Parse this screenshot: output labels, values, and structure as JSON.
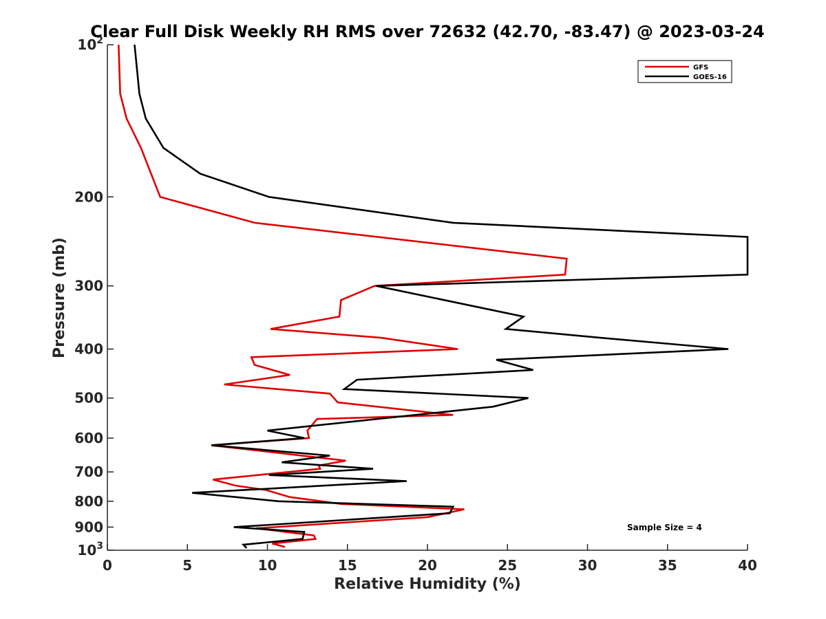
{
  "chart_data": {
    "type": "line",
    "title": "Clear Full Disk Weekly RH RMS over 72632 (42.70, -83.47) @ 2023-03-24",
    "xlabel": "Relative Humidity (%)",
    "ylabel": "Pressure (mb)",
    "xlim": [
      0,
      40
    ],
    "ylim": [
      100,
      1000
    ],
    "yscale": "log",
    "y_reversed": true,
    "x_ticks": [
      "0",
      "5",
      "10",
      "15",
      "20",
      "25",
      "30",
      "35",
      "40"
    ],
    "y_ticks": [
      {
        "value": 100,
        "label": "10",
        "sup": "2"
      },
      {
        "value": 200,
        "label": "200",
        "sup": ""
      },
      {
        "value": 300,
        "label": "300",
        "sup": ""
      },
      {
        "value": 400,
        "label": "400",
        "sup": ""
      },
      {
        "value": 500,
        "label": "500",
        "sup": ""
      },
      {
        "value": 600,
        "label": "600",
        "sup": ""
      },
      {
        "value": 700,
        "label": "700",
        "sup": ""
      },
      {
        "value": 800,
        "label": "800",
        "sup": ""
      },
      {
        "value": 900,
        "label": "900",
        "sup": ""
      },
      {
        "value": 1000,
        "label": "10",
        "sup": "3"
      }
    ],
    "grid": false,
    "legend_position": "top-right",
    "series": [
      {
        "name": "GFS",
        "color": "#e00000",
        "points": [
          [
            0.7,
            100
          ],
          [
            0.8,
            125
          ],
          [
            1.2,
            140
          ],
          [
            2.1,
            160
          ],
          [
            3.3,
            200
          ],
          [
            9.2,
            225
          ],
          [
            28.7,
            265
          ],
          [
            28.6,
            285
          ],
          [
            16.7,
            300
          ],
          [
            14.6,
            320
          ],
          [
            14.5,
            345
          ],
          [
            10.2,
            365
          ],
          [
            17.1,
            380
          ],
          [
            21.9,
            400
          ],
          [
            9.0,
            415
          ],
          [
            9.2,
            430
          ],
          [
            11.4,
            450
          ],
          [
            7.3,
            470
          ],
          [
            13.9,
            490
          ],
          [
            14.4,
            510
          ],
          [
            21.6,
            540
          ],
          [
            13.1,
            550
          ],
          [
            12.5,
            580
          ],
          [
            12.6,
            600
          ],
          [
            6.5,
            620
          ],
          [
            14.9,
            665
          ],
          [
            13.2,
            680
          ],
          [
            13.3,
            690
          ],
          [
            6.6,
            725
          ],
          [
            8.0,
            745
          ],
          [
            9.9,
            760
          ],
          [
            11.4,
            785
          ],
          [
            14.6,
            810
          ],
          [
            22.3,
            830
          ],
          [
            20.0,
            860
          ],
          [
            9.3,
            905
          ],
          [
            12.9,
            935
          ],
          [
            13.0,
            950
          ],
          [
            10.3,
            970
          ],
          [
            11.1,
            985
          ]
        ]
      },
      {
        "name": "GOES-16",
        "color": "#000000",
        "points": [
          [
            1.7,
            100
          ],
          [
            2.0,
            125
          ],
          [
            2.4,
            140
          ],
          [
            3.5,
            160
          ],
          [
            5.8,
            180
          ],
          [
            10.1,
            200
          ],
          [
            21.6,
            225
          ],
          [
            40,
            240
          ],
          [
            40,
            285
          ],
          [
            16.8,
            300
          ],
          [
            26.0,
            345
          ],
          [
            24.9,
            365
          ],
          [
            30.8,
            380
          ],
          [
            38.8,
            400
          ],
          [
            24.3,
            420
          ],
          [
            26.6,
            440
          ],
          [
            15.6,
            460
          ],
          [
            14.8,
            480
          ],
          [
            26.3,
            500
          ],
          [
            24.1,
            520
          ],
          [
            10.0,
            580
          ],
          [
            12.3,
            600
          ],
          [
            6.5,
            620
          ],
          [
            13.9,
            650
          ],
          [
            10.9,
            670
          ],
          [
            16.6,
            690
          ],
          [
            10.1,
            710
          ],
          [
            18.7,
            730
          ],
          [
            5.3,
            770
          ],
          [
            10.7,
            800
          ],
          [
            21.6,
            820
          ],
          [
            21.4,
            845
          ],
          [
            7.9,
            900
          ],
          [
            12.3,
            920
          ],
          [
            12.2,
            950
          ],
          [
            8.5,
            975
          ],
          [
            8.7,
            990
          ]
        ]
      }
    ],
    "annotations": [
      "Sample Size = 4"
    ]
  }
}
